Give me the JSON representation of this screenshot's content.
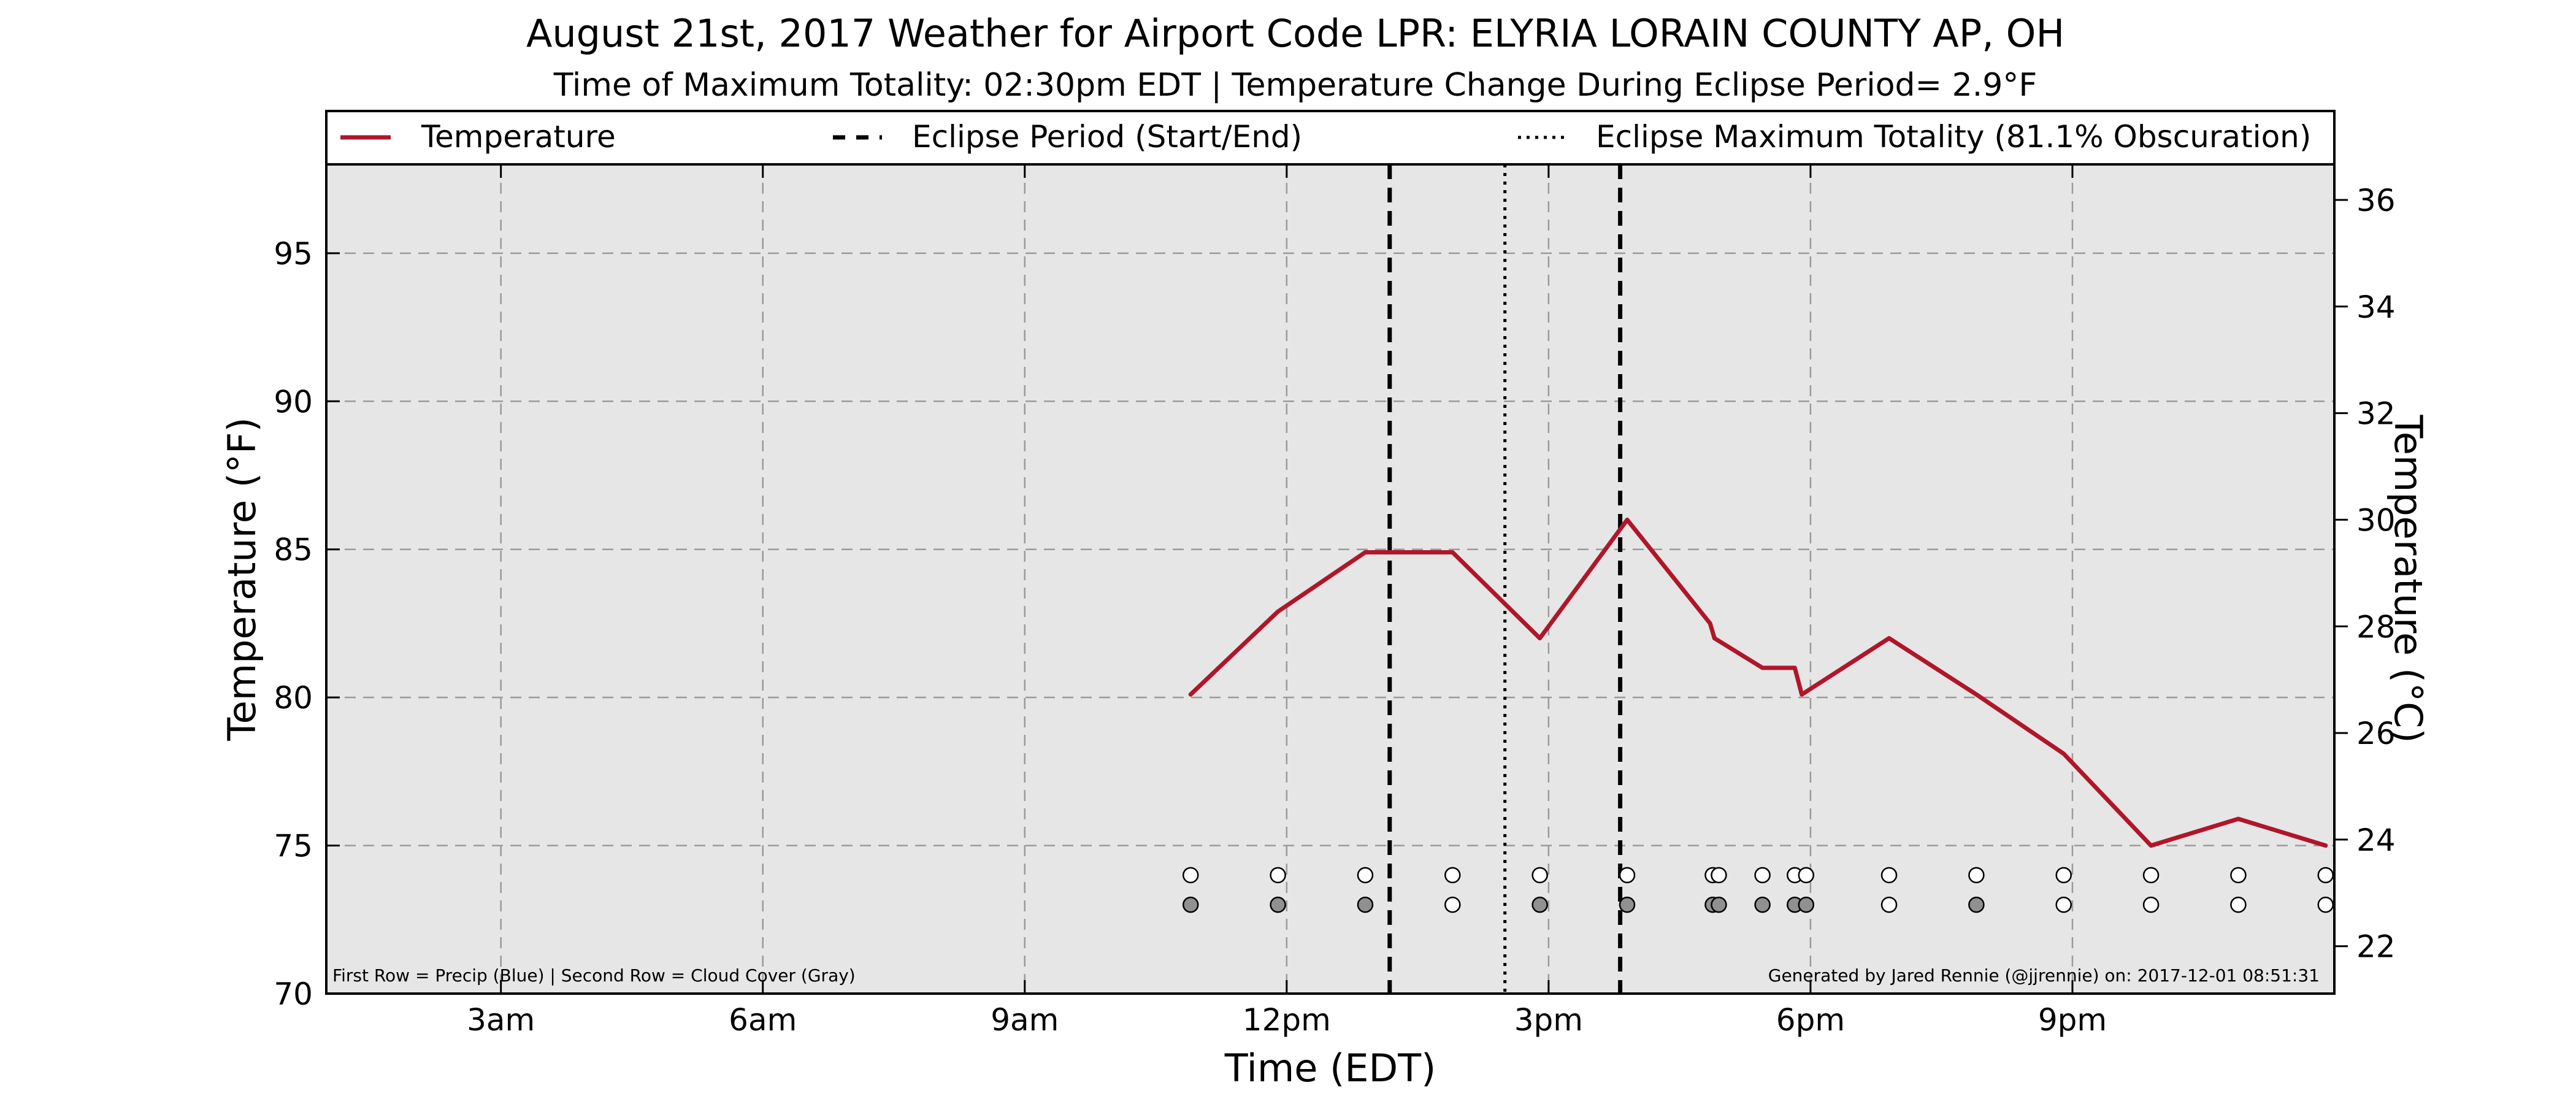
{
  "chart_data": {
    "type": "line",
    "title": "August 21st, 2017 Weather for Airport Code LPR: ELYRIA LORAIN COUNTY AP, OH",
    "subtitle": "Time of Maximum Totality: 02:30pm EDT | Temperature Change During Eclipse Period= 2.9°F",
    "xlabel": "Time (EDT)",
    "ylabel": "Temperature (°F)",
    "ylabel_right": "Temperature (°C)",
    "xlim": [
      1,
      24
    ],
    "ylim": [
      70,
      98
    ],
    "ylim_right_c": [
      21.1,
      36.7
    ],
    "x_ticks": [
      {
        "x": 3,
        "label": "3am"
      },
      {
        "x": 6,
        "label": "6am"
      },
      {
        "x": 9,
        "label": "9am"
      },
      {
        "x": 12,
        "label": "12pm"
      },
      {
        "x": 15,
        "label": "3pm"
      },
      {
        "x": 18,
        "label": "6pm"
      },
      {
        "x": 21,
        "label": "9pm"
      }
    ],
    "y_ticks": [
      70,
      75,
      80,
      85,
      90,
      95
    ],
    "y_ticks_right": [
      22,
      24,
      26,
      28,
      30,
      32,
      34,
      36
    ],
    "grid": true,
    "legend_position": "top",
    "legend": {
      "temperature": "Temperature",
      "eclipse_period": "Eclipse Period (Start/End)",
      "max_totality": "Eclipse Maximum Totality (81.1% Obscuration)"
    },
    "series": [
      {
        "name": "Temperature",
        "color": "#b0162a",
        "points": [
          [
            10.9,
            80.1
          ],
          [
            11.9,
            82.9
          ],
          [
            12.9,
            84.9
          ],
          [
            13.3,
            84.9
          ],
          [
            13.9,
            84.9
          ],
          [
            14.9,
            82.0
          ],
          [
            15.9,
            86.0
          ],
          [
            16.85,
            82.5
          ],
          [
            16.9,
            82.0
          ],
          [
            17.45,
            81.0
          ],
          [
            17.82,
            81.0
          ],
          [
            17.9,
            80.1
          ],
          [
            18.9,
            82.0
          ],
          [
            19.9,
            80.1
          ],
          [
            20.9,
            78.1
          ],
          [
            21.9,
            75.0
          ],
          [
            22.9,
            75.9
          ],
          [
            23.9,
            75.0
          ]
        ]
      }
    ],
    "eclipse_start_x": 13.18,
    "eclipse_end_x": 15.82,
    "max_totality_x": 14.5,
    "precip_row": {
      "y": 74,
      "x": [
        10.9,
        11.9,
        12.9,
        13.9,
        14.9,
        15.9,
        16.88,
        16.95,
        17.45,
        17.82,
        17.95,
        18.9,
        19.9,
        20.9,
        21.9,
        22.9,
        23.9
      ],
      "fill": [
        "#ffffff",
        "#ffffff",
        "#ffffff",
        "#ffffff",
        "#ffffff",
        "#ffffff",
        "#ffffff",
        "#ffffff",
        "#ffffff",
        "#ffffff",
        "#ffffff",
        "#ffffff",
        "#ffffff",
        "#ffffff",
        "#ffffff",
        "#ffffff",
        "#ffffff"
      ]
    },
    "cloud_row": {
      "y": 73,
      "x": [
        10.9,
        11.9,
        12.9,
        13.9,
        14.9,
        15.9,
        16.88,
        16.95,
        17.45,
        17.82,
        17.95,
        18.9,
        19.9,
        20.9,
        21.9,
        22.9,
        23.9
      ],
      "fill": [
        "#909090",
        "#909090",
        "#909090",
        "#ffffff",
        "#909090",
        "#909090",
        "#909090",
        "#909090",
        "#909090",
        "#909090",
        "#909090",
        "#ffffff",
        "#909090",
        "#ffffff",
        "#ffffff",
        "#ffffff",
        "#ffffff"
      ]
    },
    "footnote_left": "First Row = Precip (Blue) | Second Row = Cloud Cover (Gray)",
    "footnote_right": "Generated by Jared Rennie (@jjrennie) on: 2017-12-01 08:51:31"
  }
}
